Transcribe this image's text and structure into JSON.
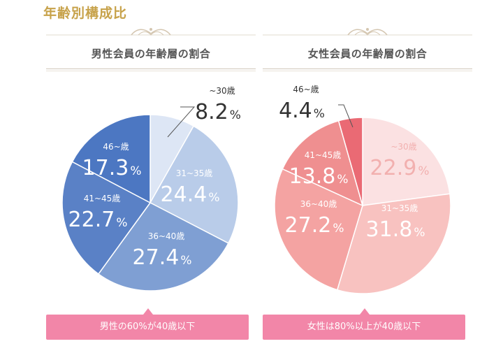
{
  "page_title": "年齢別構成比",
  "notes": {
    "male": "男性の60%が40歳以下",
    "female": "女性は80%以上が40歳以下"
  },
  "chart_data": [
    {
      "type": "pie",
      "title": "男性会員の年齢層の割合",
      "slices": [
        {
          "label": "~30歳",
          "value": 8.2,
          "color": "#dde6f5"
        },
        {
          "label": "31~35歳",
          "value": 24.4,
          "color": "#b9cce9"
        },
        {
          "label": "36~40歳",
          "value": 27.4,
          "color": "#7f9fd3"
        },
        {
          "label": "41~45歳",
          "value": 22.7,
          "color": "#5a81c6"
        },
        {
          "label": "46~歳",
          "value": 17.3,
          "color": "#4c77c2"
        }
      ]
    },
    {
      "type": "pie",
      "title": "女性会員の年齢層の割合",
      "slices": [
        {
          "label": "~30歳",
          "value": 22.9,
          "color": "#fbe1e2"
        },
        {
          "label": "31~35歳",
          "value": 31.8,
          "color": "#f8c2c0"
        },
        {
          "label": "36~40歳",
          "value": 27.2,
          "color": "#f4a3a2"
        },
        {
          "label": "41~45歳",
          "value": 13.8,
          "color": "#ef8f90"
        },
        {
          "label": "46~歳",
          "value": 4.4,
          "color": "#ea6a74"
        }
      ]
    }
  ]
}
